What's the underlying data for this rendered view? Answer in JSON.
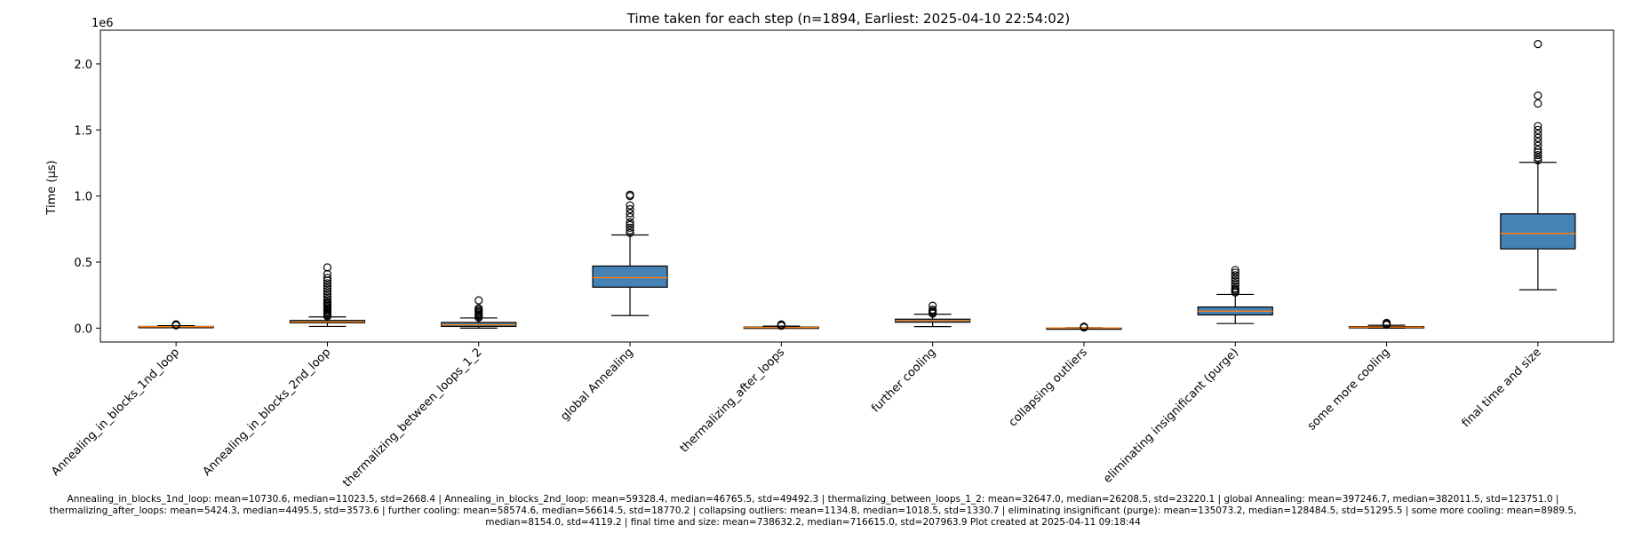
{
  "chart_data": {
    "type": "box",
    "title": "Time taken for each step (n=1894, Earliest: 2025-04-10 22:54:02)",
    "ylabel": "Time (µs)",
    "xlabel": "",
    "y_scale_label": "1e6",
    "ylim": [
      -0.105,
      2.255
    ],
    "y_unit_multiplier": 1000000,
    "yticks": [
      0.0,
      0.5,
      1.0,
      1.5,
      2.0
    ],
    "ytick_labels": [
      "0.0",
      "0.5",
      "1.0",
      "1.5",
      "2.0"
    ],
    "box_color": "#4682b4",
    "median_color": "#ff7f0e",
    "boxes": [
      {
        "label": "Annealing_in_blocks_1nd_loop",
        "whislo": 0.003,
        "q1": 0.009,
        "med": 0.011,
        "q3": 0.013,
        "whishi": 0.019,
        "fliers": [
          0.021,
          0.024,
          0.027,
          0.029
        ]
      },
      {
        "label": "Annealing_in_blocks_2nd_loop",
        "whislo": 0.013,
        "q1": 0.04,
        "med": 0.047,
        "q3": 0.058,
        "whishi": 0.085,
        "fliers": [
          0.09,
          0.1,
          0.11,
          0.12,
          0.13,
          0.14,
          0.15,
          0.16,
          0.17,
          0.18,
          0.19,
          0.2,
          0.22,
          0.24,
          0.26,
          0.28,
          0.3,
          0.32,
          0.34,
          0.36,
          0.38,
          0.41,
          0.46
        ]
      },
      {
        "label": "thermalizing_between_loops_1_2",
        "whislo": 0.0,
        "q1": 0.013,
        "med": 0.026,
        "q3": 0.043,
        "whishi": 0.077,
        "fliers": [
          0.08,
          0.09,
          0.1,
          0.11,
          0.12,
          0.13,
          0.14,
          0.15,
          0.21
        ]
      },
      {
        "label": "global Annealing",
        "whislo": 0.095,
        "q1": 0.31,
        "med": 0.382,
        "q3": 0.47,
        "whishi": 0.705,
        "fliers": [
          0.72,
          0.74,
          0.76,
          0.78,
          0.8,
          0.84,
          0.87,
          0.9,
          0.93,
          1.0,
          1.01
        ]
      },
      {
        "label": "thermalizing_after_loops",
        "whislo": 0.0,
        "q1": 0.002,
        "med": 0.0045,
        "q3": 0.008,
        "whishi": 0.015,
        "fliers": [
          0.018,
          0.021,
          0.025,
          0.028
        ]
      },
      {
        "label": "further cooling",
        "whislo": 0.012,
        "q1": 0.045,
        "med": 0.0566,
        "q3": 0.068,
        "whishi": 0.105,
        "fliers": [
          0.11,
          0.12,
          0.13,
          0.14,
          0.17
        ]
      },
      {
        "label": "collapsing outliers",
        "whislo": 0.0,
        "q1": 0.0005,
        "med": 0.001,
        "q3": 0.0015,
        "whishi": 0.004,
        "fliers": [
          0.005,
          0.008,
          0.011
        ]
      },
      {
        "label": "eliminating insignificant (purge)",
        "whislo": 0.035,
        "q1": 0.1,
        "med": 0.128,
        "q3": 0.16,
        "whishi": 0.255,
        "fliers": [
          0.27,
          0.28,
          0.29,
          0.3,
          0.32,
          0.34,
          0.36,
          0.38,
          0.4,
          0.42,
          0.44
        ]
      },
      {
        "label": "some more cooling",
        "whislo": 0.0,
        "q1": 0.005,
        "med": 0.0082,
        "q3": 0.012,
        "whishi": 0.022,
        "fliers": [
          0.025,
          0.03,
          0.035,
          0.04
        ]
      },
      {
        "label": "final time and size",
        "whislo": 0.29,
        "q1": 0.6,
        "med": 0.717,
        "q3": 0.865,
        "whishi": 1.255,
        "fliers": [
          1.27,
          1.29,
          1.31,
          1.33,
          1.35,
          1.38,
          1.41,
          1.44,
          1.47,
          1.5,
          1.53,
          1.7,
          1.76,
          2.15
        ]
      }
    ],
    "caption_lines": [
      "Annealing_in_blocks_1nd_loop: mean=10730.6, median=11023.5, std=2668.4 | Annealing_in_blocks_2nd_loop: mean=59328.4, median=46765.5, std=49492.3 | thermalizing_between_loops_1_2: mean=32647.0, median=26208.5, std=23220.1 | global Annealing: mean=397246.7, median=382011.5, std=123751.0 |",
      "thermalizing_after_loops: mean=5424.3, median=4495.5, std=3573.6 | further cooling: mean=58574.6, median=56614.5, std=18770.2 | collapsing outliers: mean=1134.8, median=1018.5, std=1330.7 | eliminating insignificant (purge): mean=135073.2, median=128484.5, std=51295.5 | some more cooling: mean=8989.5,",
      "median=8154.0, std=4119.2 | final time and size: mean=738632.2, median=716615.0, std=207963.9    Plot created at 2025-04-11 09:18:44"
    ]
  }
}
